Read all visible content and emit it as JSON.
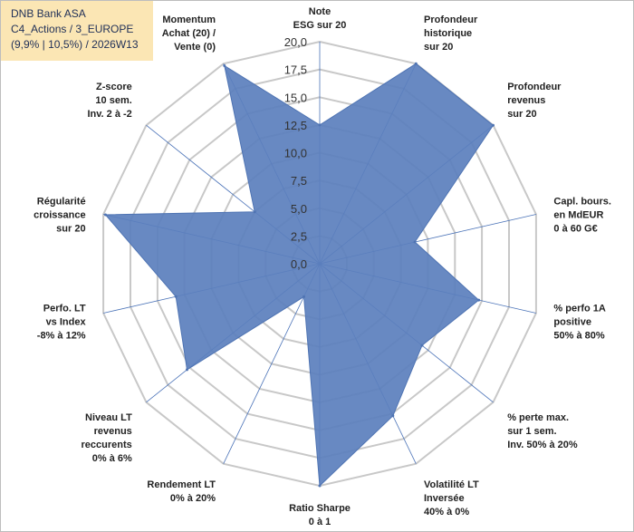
{
  "title_box": {
    "line1": "DNB Bank ASA",
    "line2": "C4_Actions / 3_EUROPE",
    "line3": "(9,9% | 10,5%) / 2026W13"
  },
  "colors": {
    "series_fill": "#5b7fbd",
    "series_stroke": "#4f74b3",
    "grid": "#c8c8c8",
    "spoke": "#4b73b8",
    "title_bg": "#fbe6b4"
  },
  "chart_data": {
    "type": "radar",
    "title": "DNB Bank ASA",
    "rmin": 0,
    "rmax": 20,
    "ticks": [
      0,
      2.5,
      5,
      7.5,
      10,
      12.5,
      15,
      17.5,
      20
    ],
    "tick_labels": [
      "0,0",
      "2,5",
      "5,0",
      "7,5",
      "10,0",
      "12,5",
      "15,0",
      "17,5",
      "20,0"
    ],
    "axes": [
      {
        "label": [
          "Note",
          "ESG sur 20"
        ],
        "value": 12.5
      },
      {
        "label": [
          "Profondeur",
          "historique",
          "sur 20"
        ],
        "value": 20
      },
      {
        "label": [
          "Profondeur",
          "revenus",
          "sur 20"
        ],
        "value": 20
      },
      {
        "label": [
          "Capl. bours.",
          "en MdEUR",
          "0 à 60 G€"
        ],
        "value": 8.8
      },
      {
        "label": [
          "% perfo 1A",
          "positive",
          "50% à 80%"
        ],
        "value": 14.7
      },
      {
        "label": [
          "% perte max.",
          "sur 1 sem.",
          "Inv. 50% à 20%"
        ],
        "value": 11.8
      },
      {
        "label": [
          "Volatilité LT",
          "Inversée",
          "40% à 0%"
        ],
        "value": 15.2
      },
      {
        "label": [
          "Ratio Sharpe",
          "0 à 1"
        ],
        "value": 20
      },
      {
        "label": [
          "Rendement LT",
          "0% à 20%"
        ],
        "value": 3.3
      },
      {
        "label": [
          "Niveau LT",
          "revenus",
          "reccurents",
          "0% à 6%"
        ],
        "value": 15.3
      },
      {
        "label": [
          "Perfo. LT",
          "vs Index",
          "-8% à 12%"
        ],
        "value": 13.3
      },
      {
        "label": [
          "Régularité",
          "croissance",
          "sur 20"
        ],
        "value": 19.8
      },
      {
        "label": [
          "Z-score",
          "10 sem.",
          "Inv. 2 à -2"
        ],
        "value": 7.5
      },
      {
        "label": [
          "Momentum",
          "Achat (20) /",
          "Vente (0)"
        ],
        "value": 19.8
      }
    ]
  }
}
